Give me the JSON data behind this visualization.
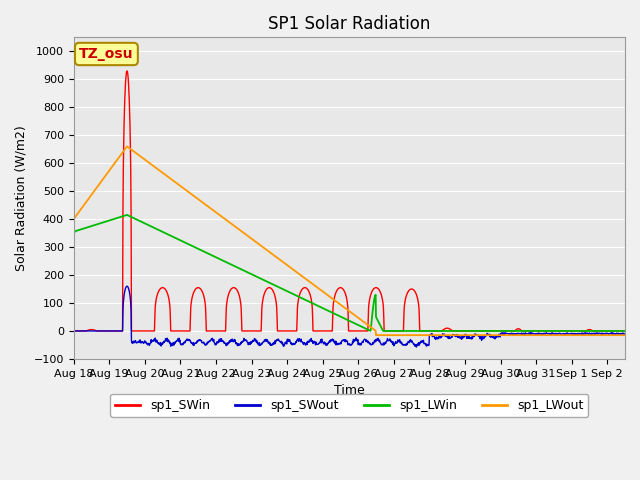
{
  "title": "SP1 Solar Radiation",
  "ylabel": "Solar Radiation (W/m2)",
  "xlabel": "Time",
  "ylim": [
    -100,
    1050
  ],
  "yticks": [
    -100,
    0,
    100,
    200,
    300,
    400,
    500,
    600,
    700,
    800,
    900,
    1000
  ],
  "xlim_start": 0,
  "xlim_end": 15.5,
  "xtick_labels": [
    "Aug 18",
    "Aug 19",
    "Aug 20",
    "Aug 21",
    "Aug 22",
    "Aug 23",
    "Aug 24",
    "Aug 25",
    "Aug 26",
    "Aug 27",
    "Aug 28",
    "Aug 29",
    "Aug 30",
    "Aug 31",
    "Sep 1",
    "Sep 2"
  ],
  "xtick_positions": [
    0,
    1,
    2,
    3,
    4,
    5,
    6,
    7,
    8,
    9,
    10,
    11,
    12,
    13,
    14,
    15
  ],
  "colors": {
    "sp1_SWin": "#ff0000",
    "sp1_SWout": "#0000cc",
    "sp1_LWin": "#00bb00",
    "sp1_LWout": "#ff9900"
  },
  "tz_label": "TZ_osu",
  "tz_bg": "#ffff99",
  "tz_border": "#cc0000",
  "plot_bg": "#e8e8e8",
  "fig_bg": "#f0f0f0",
  "grid_color": "#ffffff",
  "title_fontsize": 12,
  "axis_fontsize": 9,
  "tick_fontsize": 8,
  "legend_fontsize": 9
}
